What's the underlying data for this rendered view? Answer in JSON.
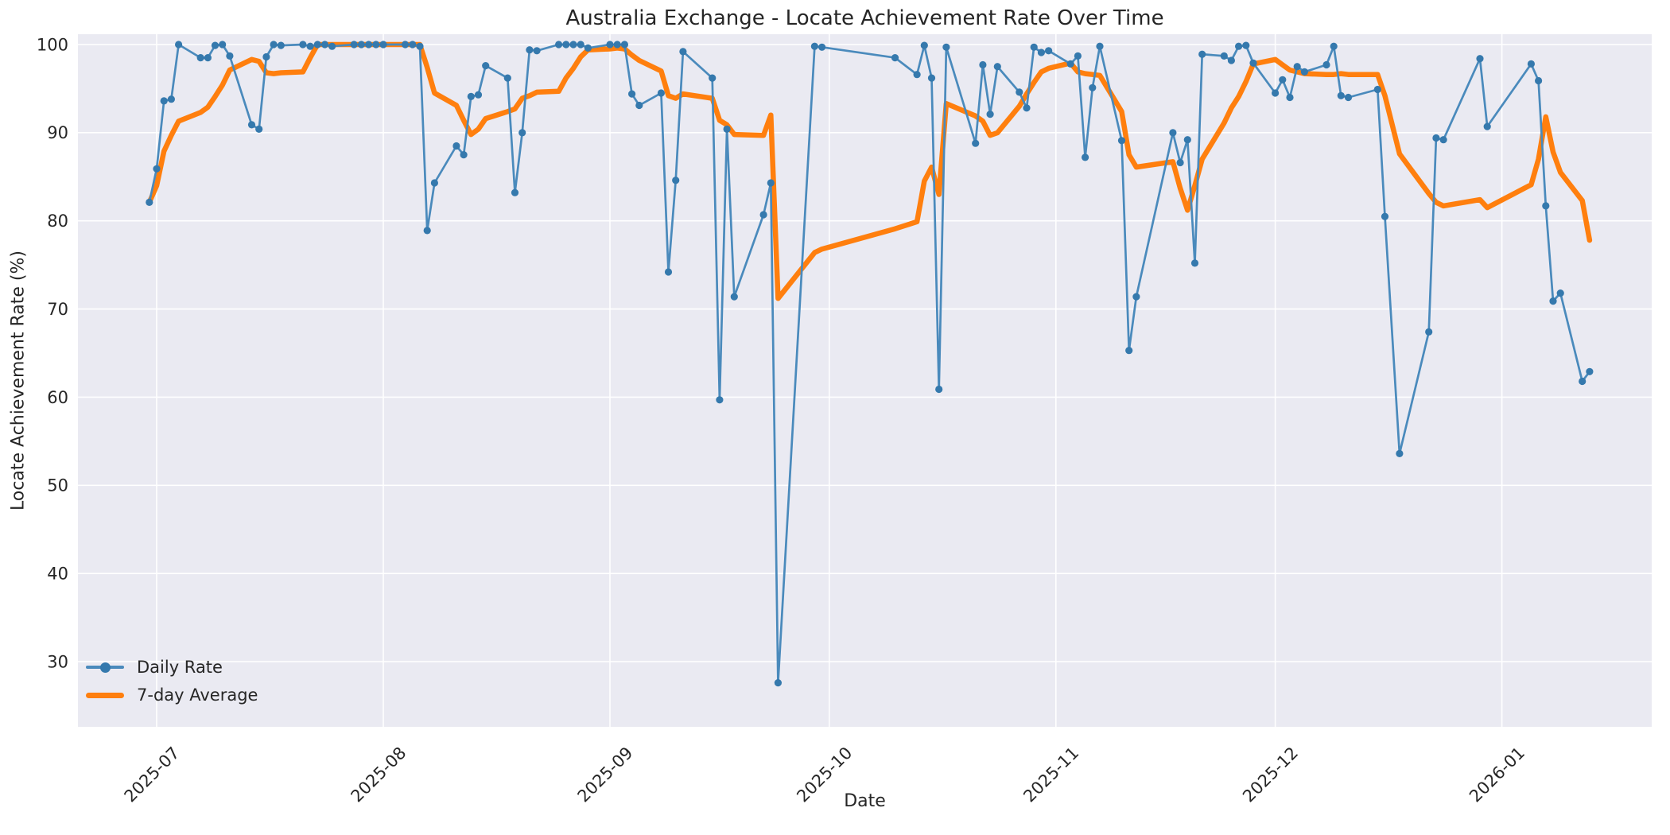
{
  "title": "Australia Exchange - Locate Achievement Rate Over Time",
  "axes": {
    "xlabel": "Date",
    "ylabel": "Locate Achievement Rate (%)"
  },
  "legend": [
    {
      "label": "Daily Rate"
    },
    {
      "label": "7-day Average"
    }
  ],
  "colors": {
    "daily_line": "#4a8abc",
    "daily_marker": "#3579ad",
    "avg_line": "#ff7f0e",
    "plot_bg": "#eaeaf2",
    "grid": "#ffffff",
    "text": "#262626"
  },
  "chart_data": {
    "type": "line",
    "title": "Australia Exchange - Locate Achievement Rate Over Time",
    "xlabel": "Date",
    "ylabel": "Locate Achievement Rate (%)",
    "grid": true,
    "legend_position": "lower left",
    "ylim": [
      22.5,
      101.3
    ],
    "y_ticks": [
      30,
      40,
      50,
      60,
      70,
      80,
      90,
      100
    ],
    "x_ticks": [
      {
        "label": "2025-07",
        "date": "2025-07-01"
      },
      {
        "label": "2025-08",
        "date": "2025-08-01"
      },
      {
        "label": "2025-09",
        "date": "2025-09-01"
      },
      {
        "label": "2025-10",
        "date": "2025-10-01"
      },
      {
        "label": "2025-11",
        "date": "2025-11-01"
      },
      {
        "label": "2025-12",
        "date": "2025-12-01"
      },
      {
        "label": "2026-01",
        "date": "2026-01-01"
      }
    ],
    "series": [
      {
        "name": "Daily Rate",
        "column": 1,
        "color": "#4a8abc",
        "marker": "circle",
        "linewidth": 2.7
      },
      {
        "name": "7-day Average",
        "column": 2,
        "color": "#ff7f0e",
        "marker": "none",
        "linewidth": 6.5
      }
    ],
    "rows": [
      [
        "2025-06-30",
        82.1,
        82.1
      ],
      [
        "2025-07-01",
        85.9,
        84.0
      ],
      [
        "2025-07-02",
        93.6,
        87.9
      ],
      [
        "2025-07-03",
        93.8,
        89.7
      ],
      [
        "2025-07-04",
        100.0,
        91.3
      ],
      [
        "2025-07-07",
        98.5,
        92.3
      ],
      [
        "2025-07-08",
        98.5,
        92.9
      ],
      [
        "2025-07-09",
        99.9,
        94.1
      ],
      [
        "2025-07-10",
        100.0,
        95.4
      ],
      [
        "2025-07-11",
        98.7,
        97.1
      ],
      [
        "2025-07-14",
        90.9,
        98.3
      ],
      [
        "2025-07-15",
        90.4,
        98.1
      ],
      [
        "2025-07-16",
        98.6,
        96.8
      ],
      [
        "2025-07-17",
        100.0,
        96.7
      ],
      [
        "2025-07-18",
        99.9,
        96.8
      ],
      [
        "2025-07-21",
        100.0,
        96.9
      ],
      [
        "2025-07-22",
        99.8,
        98.5
      ],
      [
        "2025-07-23",
        100.0,
        100.0
      ],
      [
        "2025-07-24",
        100.0,
        100.0
      ],
      [
        "2025-07-25",
        99.8,
        100.0
      ],
      [
        "2025-07-28",
        100.0,
        100.0
      ],
      [
        "2025-07-29",
        100.0,
        100.0
      ],
      [
        "2025-07-30",
        100.0,
        100.0
      ],
      [
        "2025-07-31",
        100.0,
        100.0
      ],
      [
        "2025-08-01",
        100.0,
        100.0
      ],
      [
        "2025-08-04",
        100.0,
        100.0
      ],
      [
        "2025-08-05",
        100.0,
        100.0
      ],
      [
        "2025-08-06",
        99.8,
        100.0
      ],
      [
        "2025-08-07",
        78.9,
        97.4
      ],
      [
        "2025-08-08",
        84.3,
        94.5
      ],
      [
        "2025-08-11",
        88.5,
        93.1
      ],
      [
        "2025-08-12",
        87.5,
        91.4
      ],
      [
        "2025-08-13",
        94.1,
        89.8
      ],
      [
        "2025-08-14",
        94.3,
        90.4
      ],
      [
        "2025-08-15",
        97.6,
        91.6
      ],
      [
        "2025-08-18",
        96.2,
        92.4
      ],
      [
        "2025-08-19",
        83.2,
        92.7
      ],
      [
        "2025-08-20",
        90.0,
        93.9
      ],
      [
        "2025-08-21",
        99.4,
        94.2
      ],
      [
        "2025-08-22",
        99.3,
        94.6
      ],
      [
        "2025-08-25",
        100.0,
        94.7
      ],
      [
        "2025-08-26",
        100.0,
        96.2
      ],
      [
        "2025-08-27",
        100.0,
        97.3
      ],
      [
        "2025-08-28",
        100.0,
        98.6
      ],
      [
        "2025-08-29",
        99.6,
        99.4
      ],
      [
        "2025-09-01",
        100.0,
        99.5
      ],
      [
        "2025-09-02",
        100.0,
        99.6
      ],
      [
        "2025-09-03",
        100.0,
        99.5
      ],
      [
        "2025-09-04",
        94.4,
        98.8
      ],
      [
        "2025-09-05",
        93.1,
        98.2
      ],
      [
        "2025-09-08",
        94.5,
        97.0
      ],
      [
        "2025-09-09",
        74.2,
        94.2
      ],
      [
        "2025-09-10",
        84.6,
        93.9
      ],
      [
        "2025-09-11",
        99.2,
        94.4
      ],
      [
        "2025-09-15",
        96.2,
        93.9
      ],
      [
        "2025-09-16",
        59.7,
        91.4
      ],
      [
        "2025-09-17",
        90.4,
        90.9
      ],
      [
        "2025-09-18",
        71.4,
        89.8
      ],
      [
        "2025-09-22",
        80.7,
        89.7
      ],
      [
        "2025-09-23",
        84.3,
        92.0
      ],
      [
        "2025-09-24",
        27.6,
        71.2
      ],
      [
        "2025-09-29",
        99.8,
        76.4
      ],
      [
        "2025-09-30",
        99.7,
        76.8
      ],
      [
        "2025-10-10",
        98.5,
        79.1
      ],
      [
        "2025-10-13",
        96.6,
        79.9
      ],
      [
        "2025-10-14",
        99.9,
        84.5
      ],
      [
        "2025-10-15",
        96.2,
        86.1
      ],
      [
        "2025-10-16",
        60.9,
        83.0
      ],
      [
        "2025-10-17",
        99.7,
        93.3
      ],
      [
        "2025-10-21",
        88.8,
        91.9
      ],
      [
        "2025-10-22",
        97.7,
        91.3
      ],
      [
        "2025-10-23",
        92.1,
        89.7
      ],
      [
        "2025-10-24",
        97.5,
        90.0
      ],
      [
        "2025-10-27",
        94.6,
        93.0
      ],
      [
        "2025-10-28",
        92.8,
        94.4
      ],
      [
        "2025-10-29",
        99.7,
        95.7
      ],
      [
        "2025-10-30",
        99.1,
        96.9
      ],
      [
        "2025-10-31",
        99.3,
        97.3
      ],
      [
        "2025-11-03",
        97.8,
        97.9
      ],
      [
        "2025-11-04",
        98.7,
        96.9
      ],
      [
        "2025-11-05",
        87.2,
        96.7
      ],
      [
        "2025-11-06",
        95.1,
        96.6
      ],
      [
        "2025-11-07",
        99.8,
        96.5
      ],
      [
        "2025-11-10",
        89.1,
        92.4
      ],
      [
        "2025-11-11",
        65.3,
        87.5
      ],
      [
        "2025-11-12",
        71.4,
        86.1
      ],
      [
        "2025-11-17",
        90.0,
        86.7
      ],
      [
        "2025-11-18",
        86.6,
        83.7
      ],
      [
        "2025-11-19",
        89.2,
        81.2
      ],
      [
        "2025-11-20",
        75.2,
        84.0
      ],
      [
        "2025-11-21",
        98.9,
        87.0
      ],
      [
        "2025-11-24",
        98.7,
        91.1
      ],
      [
        "2025-11-25",
        98.2,
        92.8
      ],
      [
        "2025-11-26",
        99.8,
        94.1
      ],
      [
        "2025-11-27",
        99.9,
        95.8
      ],
      [
        "2025-11-28",
        97.9,
        97.8
      ],
      [
        "2025-12-01",
        94.5,
        98.3
      ],
      [
        "2025-12-02",
        96.0,
        97.7
      ],
      [
        "2025-12-03",
        94.0,
        97.1
      ],
      [
        "2025-12-04",
        97.5,
        96.9
      ],
      [
        "2025-12-05",
        96.9,
        96.7
      ],
      [
        "2025-12-08",
        97.7,
        96.6
      ],
      [
        "2025-12-09",
        99.8,
        96.6
      ],
      [
        "2025-12-10",
        94.2,
        96.7
      ],
      [
        "2025-12-11",
        94.0,
        96.6
      ],
      [
        "2025-12-15",
        94.9,
        96.6
      ],
      [
        "2025-12-16",
        80.5,
        94.2
      ],
      [
        "2025-12-18",
        53.6,
        87.6
      ],
      [
        "2025-12-22",
        67.4,
        83.1
      ],
      [
        "2025-12-23",
        89.4,
        82.1
      ],
      [
        "2025-12-24",
        89.2,
        81.7
      ],
      [
        "2025-12-29",
        98.4,
        82.4
      ],
      [
        "2025-12-30",
        90.7,
        81.5
      ],
      [
        "2026-01-05",
        97.8,
        84.1
      ],
      [
        "2026-01-06",
        95.9,
        87.0
      ],
      [
        "2026-01-07",
        81.7,
        91.8
      ],
      [
        "2026-01-08",
        70.9,
        87.8
      ],
      [
        "2026-01-09",
        71.8,
        85.5
      ],
      [
        "2026-01-12",
        61.8,
        82.3
      ],
      [
        "2026-01-13",
        62.9,
        77.8
      ]
    ]
  }
}
